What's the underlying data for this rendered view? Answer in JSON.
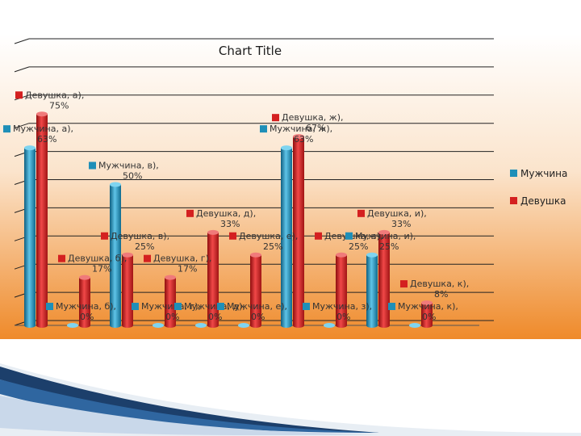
{
  "chart_data": {
    "type": "bar",
    "title": "Chart Title",
    "categories": [
      "а)",
      "б)",
      "в)",
      "г)",
      "д)",
      "е)",
      "ж)",
      "з)",
      "и)",
      "к)"
    ],
    "series": [
      {
        "name": "Мужчина",
        "values": [
          63,
          0,
          50,
          0,
          0,
          0,
          63,
          0,
          25,
          0
        ],
        "color": "#1f8fb8"
      },
      {
        "name": "Девушка",
        "values": [
          75,
          17,
          25,
          17,
          33,
          25,
          67,
          25,
          33,
          8
        ],
        "color": "#d42020"
      }
    ],
    "data_labels": {
      "male": [
        "Мужчина, а), 63%",
        "Мужчина, б), 0%",
        "Мужчина, в), 50%",
        "Мужчина, г), 0%",
        "Мужчина, д), 0%",
        "Мужчина, е), 0%",
        "Мужчина, ж), 63%",
        "Мужчина, з), 0%",
        "Мужчина, и), 25%",
        "Мужчина, к), 0%"
      ],
      "female": [
        "Девушка, а), 75%",
        "Девушка, б), 17%",
        "Девушка, в), 25%",
        "Девушка, г), 17%",
        "Девушка, д), 33%",
        "Девушка, е), 25%",
        "Девушка, ж), 67%",
        "Девушка, з), 25%",
        "Девушка, и), 33%",
        "Девушка, к), 8%"
      ]
    },
    "ylim": [
      0,
      100
    ],
    "legend_position": "right",
    "grid": true,
    "background": [
      "#ffffff",
      "#f08a2a"
    ]
  }
}
